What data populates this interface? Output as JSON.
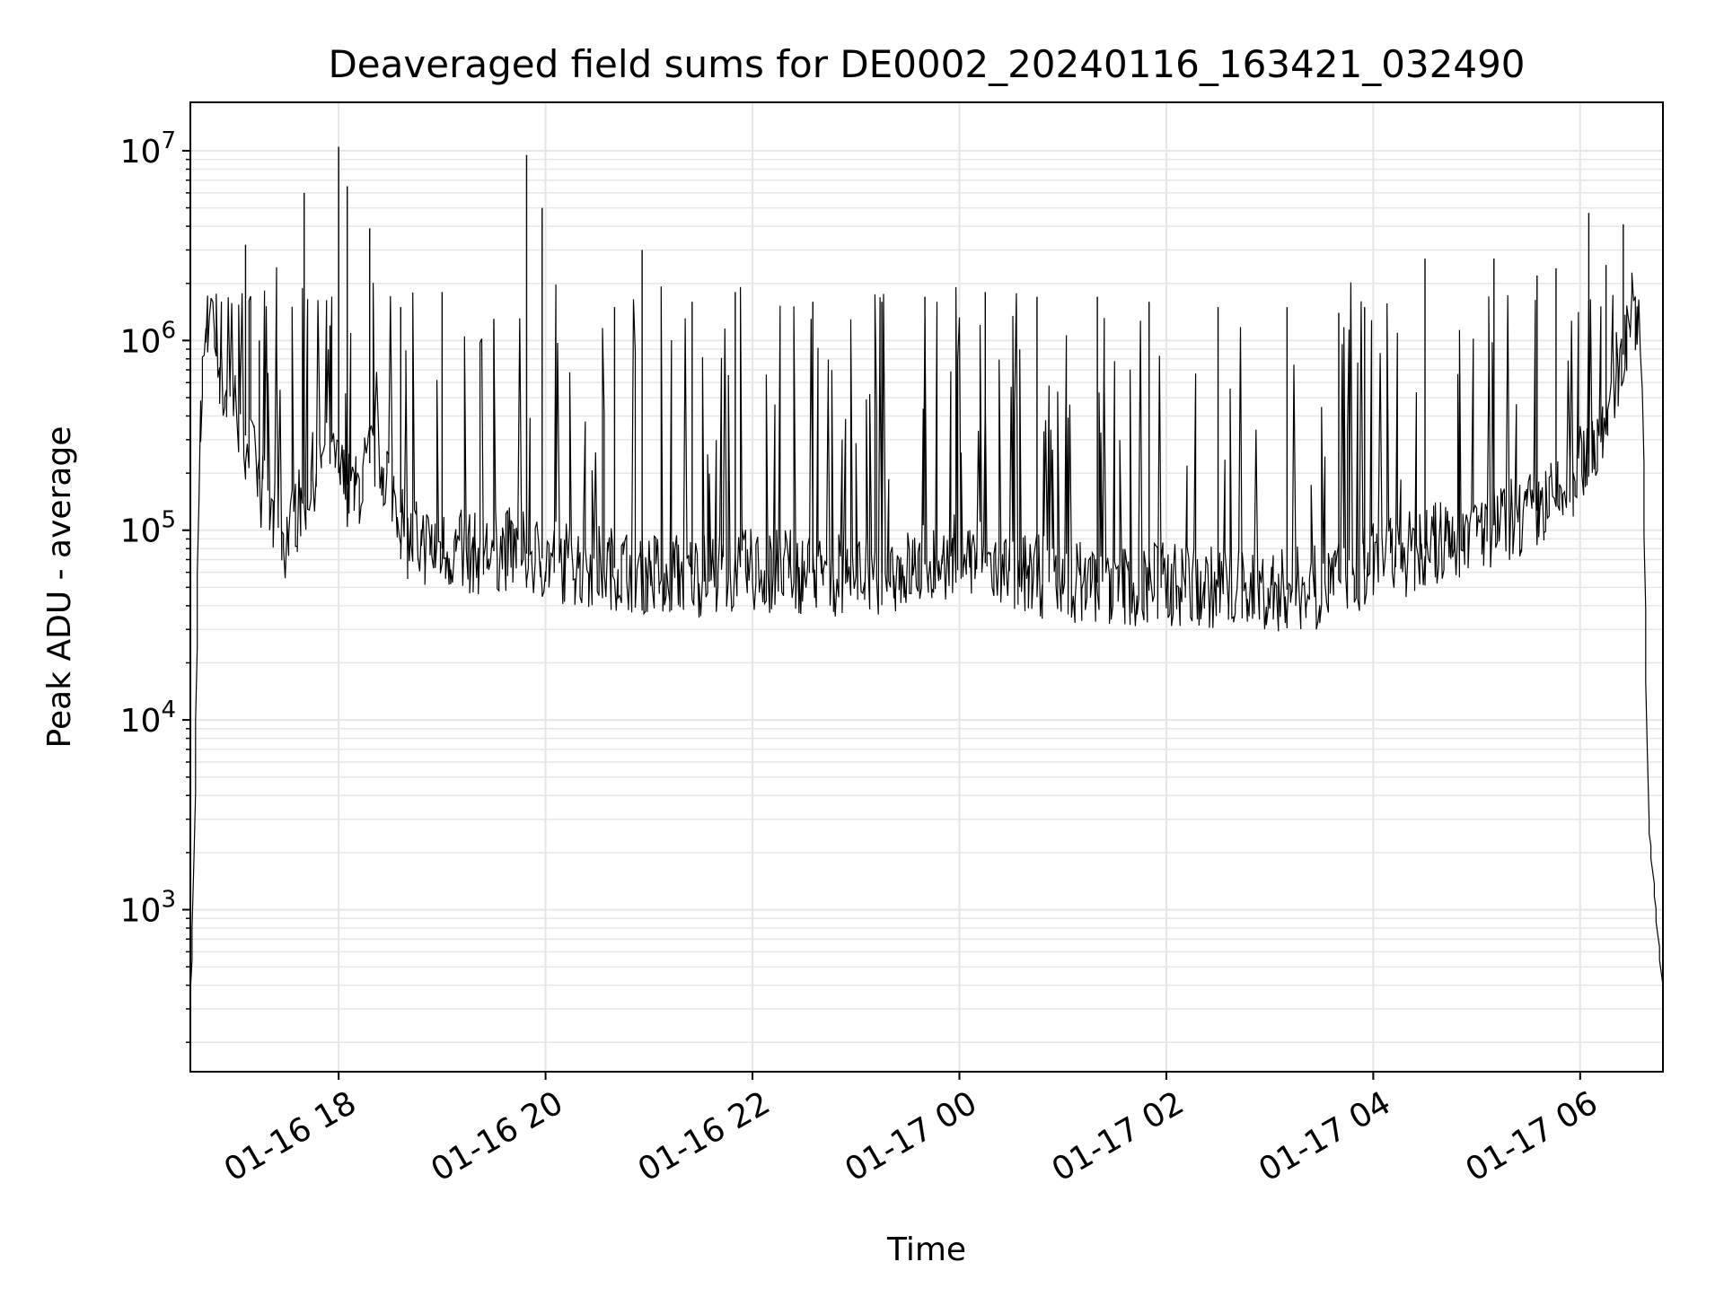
{
  "chart_data": {
    "type": "line",
    "title": "Deaveraged field sums for DE0002_20240116_163421_032490",
    "xlabel": "Time",
    "ylabel": "Peak ADU - average",
    "y_scale": "log",
    "ylim": [
      140,
      18000000
    ],
    "xlim": [
      "2024-01-16 16:34",
      "2024-01-17 06:48"
    ],
    "grid": true,
    "x_ticks": [
      {
        "value": "2024-01-16 18:00",
        "label": "01-16 18"
      },
      {
        "value": "2024-01-16 20:00",
        "label": "01-16 20"
      },
      {
        "value": "2024-01-16 22:00",
        "label": "01-16 22"
      },
      {
        "value": "2024-01-17 00:00",
        "label": "01-17 00"
      },
      {
        "value": "2024-01-17 02:00",
        "label": "01-17 02"
      },
      {
        "value": "2024-01-17 04:00",
        "label": "01-17 04"
      },
      {
        "value": "2024-01-17 06:00",
        "label": "01-17 06"
      }
    ],
    "y_ticks": [
      {
        "value": 1000,
        "base": "10",
        "exp": "3"
      },
      {
        "value": 10000,
        "base": "10",
        "exp": "4"
      },
      {
        "value": 100000,
        "base": "10",
        "exp": "5"
      },
      {
        "value": 1000000,
        "base": "10",
        "exp": "6"
      },
      {
        "value": 10000000,
        "base": "10",
        "exp": "7"
      }
    ],
    "series": [
      {
        "color": "#000000",
        "x": [
          "2024-01-16 16:34",
          "2024-01-16 16:36",
          "2024-01-16 16:40",
          "2024-01-16 16:44",
          "2024-01-16 16:48",
          "2024-01-16 16:52",
          "2024-01-16 17:00",
          "2024-01-16 17:10",
          "2024-01-16 17:20",
          "2024-01-16 17:30",
          "2024-01-16 17:40",
          "2024-01-16 17:50",
          "2024-01-16 18:00",
          "2024-01-16 18:10",
          "2024-01-16 18:20",
          "2024-01-16 18:30",
          "2024-01-16 18:40",
          "2024-01-16 19:00",
          "2024-01-16 19:20",
          "2024-01-16 19:40",
          "2024-01-16 20:00",
          "2024-01-16 20:30",
          "2024-01-16 21:00",
          "2024-01-16 21:30",
          "2024-01-16 22:00",
          "2024-01-16 22:30",
          "2024-01-16 23:00",
          "2024-01-16 23:30",
          "2024-01-17 00:00",
          "2024-01-17 00:30",
          "2024-01-17 01:00",
          "2024-01-17 01:30",
          "2024-01-17 02:00",
          "2024-01-17 02:30",
          "2024-01-17 03:00",
          "2024-01-17 03:30",
          "2024-01-17 04:00",
          "2024-01-17 04:30",
          "2024-01-17 05:00",
          "2024-01-17 05:30",
          "2024-01-17 05:50",
          "2024-01-17 06:10",
          "2024-01-17 06:20",
          "2024-01-17 06:26",
          "2024-01-17 06:30",
          "2024-01-17 06:36",
          "2024-01-17 06:40",
          "2024-01-17 06:44",
          "2024-01-17 06:48"
        ],
        "y": [
          250,
          900,
          300000,
          1400000,
          1300000,
          600000,
          450000,
          250000,
          120000,
          90000,
          150000,
          250000,
          200000,
          150000,
          250000,
          200000,
          90000,
          80000,
          75000,
          80000,
          70000,
          65000,
          60000,
          58000,
          62000,
          60000,
          58000,
          62000,
          75000,
          60000,
          55000,
          52000,
          52000,
          50000,
          48000,
          50000,
          65000,
          80000,
          100000,
          120000,
          150000,
          300000,
          600000,
          900000,
          1500000,
          1000000,
          3000,
          1100,
          400
        ]
      }
    ],
    "spikes": {
      "x": [
        "2024-01-16 17:06",
        "2024-01-16 17:14",
        "2024-01-16 17:40",
        "2024-01-16 17:55",
        "2024-01-16 18:00",
        "2024-01-16 18:05",
        "2024-01-16 18:18",
        "2024-01-16 18:36",
        "2024-01-16 19:00",
        "2024-01-16 19:30",
        "2024-01-16 19:49",
        "2024-01-16 19:58",
        "2024-01-16 20:40",
        "2024-01-16 20:56",
        "2024-01-16 21:25",
        "2024-01-16 21:50",
        "2024-01-16 22:35",
        "2024-01-16 23:15",
        "2024-01-16 23:40",
        "2024-01-17 00:15",
        "2024-01-17 00:45",
        "2024-01-17 01:20",
        "2024-01-17 01:50",
        "2024-01-17 02:30",
        "2024-01-17 03:10",
        "2024-01-17 03:40",
        "2024-01-17 03:55",
        "2024-01-17 04:30",
        "2024-01-17 05:10",
        "2024-01-17 05:35",
        "2024-01-17 05:46",
        "2024-01-17 06:05",
        "2024-01-17 06:15",
        "2024-01-17 06:25"
      ],
      "y": [
        3200000,
        1000000,
        6000000,
        1200000,
        10500000,
        6500000,
        3900000,
        1500000,
        1800000,
        1300000,
        9500000,
        5000000,
        1500000,
        3000000,
        1600000,
        1800000,
        1600000,
        1600000,
        1700000,
        1800000,
        1700000,
        1700000,
        1600000,
        1500000,
        1500000,
        1400000,
        1500000,
        2700000,
        2700000,
        2200000,
        2400000,
        4700000,
        2500000,
        4100000
      ]
    }
  }
}
